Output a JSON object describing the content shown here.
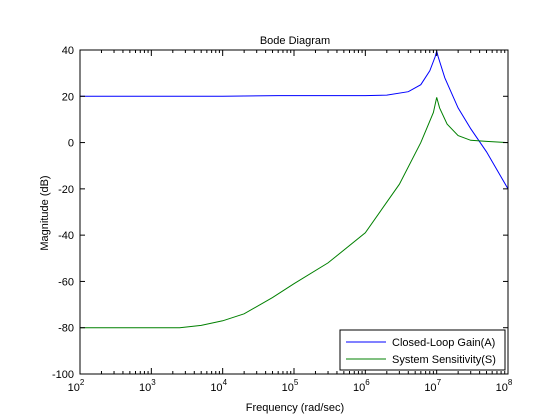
{
  "chart_data": {
    "type": "line",
    "title": "Bode Diagram",
    "xlabel": "Frequency  (rad/sec)",
    "ylabel": "Magnitude (dB)",
    "xscale": "log",
    "xlim": [
      100,
      100000000
    ],
    "ylim": [
      -100,
      40
    ],
    "yticks": [
      "40",
      "20",
      "0",
      "-20",
      "-40",
      "-60",
      "-80",
      "-100"
    ],
    "yticks_values": [
      40,
      20,
      0,
      -20,
      -40,
      -60,
      -80,
      -100
    ],
    "xticks_values": [
      100,
      1000,
      10000,
      100000,
      1000000,
      10000000,
      100000000
    ],
    "xticks_base": "10",
    "xticks_exp": [
      "2",
      "3",
      "4",
      "5",
      "6",
      "7",
      "8"
    ],
    "grid": false,
    "legend_position": "bottom-right",
    "series": [
      {
        "name": "Closed-Loop Gain(A)",
        "color": "#0000ff",
        "x": [
          100,
          1000,
          10000,
          60000,
          100000,
          1000000,
          2000000,
          4000000,
          6000000,
          8000000,
          9500000,
          10000000,
          10500000,
          13000000,
          20000000,
          30000000,
          50000000,
          100000000
        ],
        "y": [
          20,
          20,
          20,
          20.3,
          20.3,
          20.3,
          20.5,
          22,
          25,
          31,
          37,
          39.5,
          37,
          28,
          15,
          6,
          -4,
          -20
        ]
      },
      {
        "name": "System Sensitivity(S)",
        "color": "#008000",
        "x": [
          100,
          1000,
          2500,
          5000,
          10000,
          20000,
          50000,
          100000,
          300000,
          1000000,
          3000000,
          6000000,
          9000000,
          10000000,
          11000000,
          14000000,
          20000000,
          30000000,
          50000000,
          100000000
        ],
        "y": [
          -80,
          -80,
          -80,
          -79,
          -77,
          -74,
          -67,
          -61,
          -52,
          -39,
          -18,
          0,
          13,
          19.5,
          15,
          8,
          3,
          1,
          0.5,
          0
        ]
      }
    ]
  }
}
